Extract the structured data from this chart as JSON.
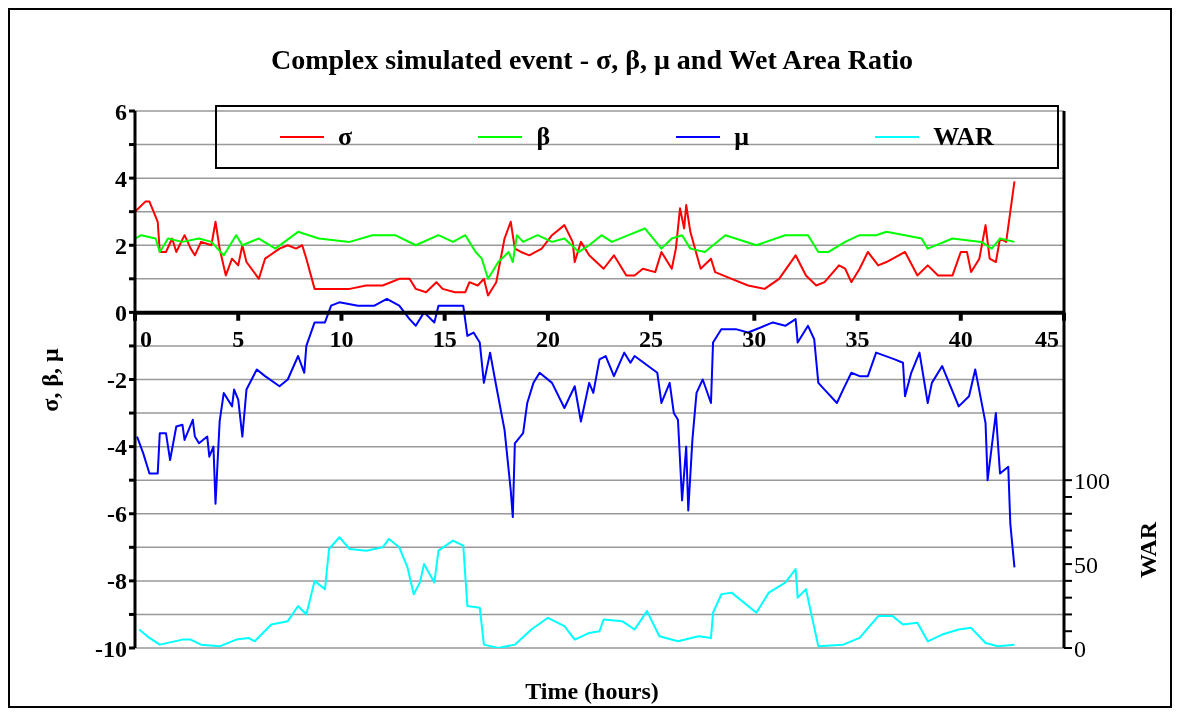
{
  "chart_data": {
    "type": "line",
    "title": "Complex simulated event - σ, β, μ and Wet Area Ratio",
    "xlabel": "Time (hours)",
    "ylabel": "σ, β, μ",
    "y2label": "WAR",
    "xlim": [
      0,
      45
    ],
    "xticks": [
      0,
      5,
      10,
      15,
      20,
      25,
      30,
      35,
      40,
      45
    ],
    "ylim": [
      -10,
      6
    ],
    "yticks": [
      -10,
      {
        "value": -9,
        "label": null
      },
      -8,
      {
        "value": -7,
        "label": null
      },
      -6,
      {
        "value": -5,
        "label": null
      },
      -4,
      {
        "value": -3,
        "label": null
      },
      -2,
      {
        "value": -1,
        "label": null
      },
      0,
      {
        "value": 1,
        "label": null
      },
      2,
      {
        "value": 3,
        "label": null
      },
      4,
      {
        "value": 5,
        "label": null
      },
      6
    ],
    "y2lim": [
      0,
      320
    ],
    "y2ticks": [
      0,
      {
        "value": 10,
        "label": null
      },
      {
        "value": 20,
        "label": null
      },
      {
        "value": 30,
        "label": null
      },
      {
        "value": 40,
        "label": null
      },
      50,
      {
        "value": 60,
        "label": null
      },
      {
        "value": 70,
        "label": null
      },
      {
        "value": 80,
        "label": null
      },
      {
        "value": 90,
        "label": null
      },
      100
    ],
    "grid": "y",
    "legend": "top",
    "marker": "none",
    "line_style": "solid",
    "series": [
      {
        "name": "σ",
        "color": "#ff0000",
        "x": [
          0,
          0.5,
          0.7,
          0.9,
          1.1,
          1.2,
          1.5,
          1.8,
          2.0,
          2.4,
          2.7,
          2.9,
          3.2,
          3.7,
          3.9,
          4.1,
          4.4,
          4.7,
          5.0,
          5.2,
          5.4,
          6.0,
          6.3,
          7.0,
          7.4,
          7.8,
          8.1,
          8.3,
          8.7,
          9.5,
          10.4,
          11.2,
          12.0,
          12.8,
          13.3,
          13.6,
          14.1,
          14.6,
          14.9,
          15.5,
          16.0,
          16.2,
          16.6,
          16.9,
          17.1,
          17.5,
          17.9,
          18.2,
          18.4,
          18.7,
          19.1,
          19.7,
          20.2,
          20.8,
          21.2,
          21.3,
          21.6,
          22.0,
          22.7,
          23.2,
          23.8,
          24.2,
          24.6,
          25.2,
          25.5,
          26.0,
          26.2,
          26.4,
          26.6,
          26.7,
          26.9,
          27.4,
          27.9,
          28.1,
          28.9,
          29.7,
          30.5,
          31.2,
          32.0,
          32.5,
          33.0,
          33.4,
          34.1,
          34.4,
          34.7,
          35.1,
          35.5,
          36.0,
          36.4,
          37.3,
          37.9,
          38.4,
          38.9,
          39.6,
          40.0,
          40.3,
          40.5,
          40.9,
          41.2,
          41.4,
          41.7,
          41.9,
          42.2,
          42.4,
          42.6
        ],
        "values": [
          3.0,
          3.3,
          3.3,
          3.0,
          2.7,
          1.8,
          1.8,
          2.2,
          1.8,
          2.3,
          1.9,
          1.7,
          2.1,
          2.0,
          2.7,
          1.9,
          1.1,
          1.6,
          1.4,
          2.0,
          1.5,
          1.0,
          1.6,
          1.9,
          2.0,
          1.9,
          2.0,
          1.6,
          0.7,
          0.7,
          0.7,
          0.8,
          0.8,
          1.0,
          1.0,
          0.7,
          0.6,
          0.9,
          0.7,
          0.6,
          0.6,
          0.9,
          0.8,
          1.0,
          0.5,
          0.9,
          2.2,
          2.7,
          1.9,
          1.8,
          1.7,
          1.9,
          2.3,
          2.6,
          2.1,
          1.5,
          2.1,
          1.7,
          1.3,
          1.7,
          1.1,
          1.1,
          1.3,
          1.2,
          1.8,
          1.3,
          1.9,
          3.1,
          2.5,
          3.2,
          2.4,
          1.3,
          1.6,
          1.2,
          1.0,
          0.8,
          0.7,
          1.0,
          1.7,
          1.1,
          0.8,
          0.9,
          1.4,
          1.3,
          0.9,
          1.3,
          1.8,
          1.4,
          1.5,
          1.8,
          1.1,
          1.4,
          1.1,
          1.1,
          1.8,
          1.8,
          1.2,
          1.6,
          2.6,
          1.6,
          1.5,
          2.2,
          2.1,
          3.0,
          3.9
        ]
      },
      {
        "name": "β",
        "color": "#00ff00",
        "x": [
          0,
          0.3,
          1.0,
          1.2,
          1.6,
          2.3,
          3.1,
          3.7,
          4.3,
          4.9,
          5.2,
          6.0,
          6.8,
          7.9,
          8.9,
          10.4,
          11.5,
          12.6,
          13.6,
          14.7,
          15.4,
          16.0,
          16.5,
          16.8,
          17.1,
          17.6,
          18.1,
          18.3,
          18.5,
          18.8,
          19.5,
          20.2,
          20.8,
          21.5,
          22.0,
          22.6,
          23.1,
          23.9,
          24.7,
          25.5,
          26.0,
          26.5,
          26.9,
          27.6,
          28.6,
          30.1,
          31.5,
          32.6,
          33.1,
          33.6,
          34.4,
          35.1,
          35.9,
          36.4,
          37.3,
          38.1,
          38.4,
          39.6,
          41.0,
          41.5,
          41.9,
          42.6
        ],
        "values": [
          2.2,
          2.3,
          2.2,
          1.8,
          2.2,
          2.1,
          2.2,
          2.1,
          1.7,
          2.3,
          2.0,
          2.2,
          1.9,
          2.4,
          2.2,
          2.1,
          2.3,
          2.3,
          2.0,
          2.3,
          2.1,
          2.3,
          1.8,
          1.6,
          1.0,
          1.5,
          1.8,
          1.5,
          2.3,
          2.1,
          2.3,
          2.1,
          2.2,
          1.8,
          2.0,
          2.3,
          2.1,
          2.3,
          2.5,
          1.9,
          2.2,
          2.3,
          1.9,
          1.8,
          2.3,
          2.0,
          2.3,
          2.3,
          1.8,
          1.8,
          2.1,
          2.3,
          2.3,
          2.4,
          2.3,
          2.2,
          1.9,
          2.2,
          2.1,
          1.9,
          2.2,
          2.1
        ]
      },
      {
        "name": "μ",
        "color": "#0000ff",
        "x": [
          0.1,
          0.4,
          0.7,
          1.1,
          1.2,
          1.5,
          1.7,
          2.0,
          2.3,
          2.4,
          2.8,
          2.9,
          3.1,
          3.5,
          3.6,
          3.8,
          3.9,
          4.1,
          4.3,
          4.7,
          4.8,
          5.0,
          5.2,
          5.4,
          5.9,
          6.3,
          7.0,
          7.4,
          7.9,
          8.2,
          8.3,
          8.7,
          9.2,
          9.5,
          9.9,
          10.8,
          11.6,
          12.2,
          12.8,
          13.3,
          13.6,
          14.0,
          14.5,
          14.7,
          15.2,
          15.9,
          16.1,
          16.4,
          16.7,
          16.9,
          17.2,
          17.5,
          17.9,
          18.2,
          18.3,
          18.4,
          18.8,
          19.0,
          19.3,
          19.6,
          20.2,
          20.8,
          21.3,
          21.6,
          22.0,
          22.2,
          22.5,
          22.8,
          23.2,
          23.7,
          24.0,
          24.2,
          25.3,
          25.5,
          25.9,
          26.1,
          26.3,
          26.5,
          26.7,
          26.8,
          27.0,
          27.2,
          27.5,
          27.9,
          28.0,
          28.4,
          29.1,
          29.7,
          30.9,
          31.5,
          32.0,
          32.1,
          32.6,
          32.9,
          33.1,
          33.4,
          34.0,
          34.3,
          34.7,
          35.1,
          35.5,
          35.9,
          36.8,
          37.2,
          37.3,
          37.6,
          38.0,
          38.4,
          38.6,
          39.1,
          39.9,
          40.4,
          40.7,
          41.2,
          41.3,
          41.7,
          41.9,
          42.3,
          42.4,
          42.6
        ],
        "values": [
          -3.7,
          -4.2,
          -4.8,
          -4.8,
          -3.6,
          -3.6,
          -4.4,
          -3.4,
          -3.35,
          -3.8,
          -3.2,
          -3.7,
          -3.9,
          -3.7,
          -4.3,
          -4.0,
          -5.7,
          -3.25,
          -2.4,
          -2.8,
          -2.3,
          -2.6,
          -3.7,
          -2.3,
          -1.7,
          -1.9,
          -2.2,
          -2.0,
          -1.3,
          -1.8,
          -1.0,
          -0.3,
          -0.3,
          0.2,
          0.3,
          0.2,
          0.2,
          0.4,
          0.2,
          -0.2,
          -0.4,
          0.0,
          -0.3,
          0.2,
          0.2,
          0.2,
          -0.7,
          -0.6,
          -0.9,
          -2.1,
          -1.2,
          -2.2,
          -3.5,
          -5.3,
          -6.1,
          -3.9,
          -3.6,
          -2.7,
          -2.1,
          -1.8,
          -2.1,
          -2.85,
          -2.2,
          -3.25,
          -2.1,
          -2.4,
          -1.4,
          -1.3,
          -1.9,
          -1.2,
          -1.5,
          -1.3,
          -1.8,
          -2.7,
          -2.1,
          -3.0,
          -3.2,
          -5.6,
          -4.0,
          -5.9,
          -3.8,
          -2.4,
          -2.0,
          -2.7,
          -0.9,
          -0.5,
          -0.5,
          -0.6,
          -0.3,
          -0.4,
          -0.2,
          -0.9,
          -0.4,
          -0.8,
          -2.1,
          -2.3,
          -2.7,
          -2.3,
          -1.8,
          -1.9,
          -1.9,
          -1.2,
          -1.4,
          -1.5,
          -2.5,
          -1.8,
          -1.2,
          -2.7,
          -2.1,
          -1.6,
          -2.8,
          -2.5,
          -1.7,
          -3.3,
          -5.0,
          -3.0,
          -4.8,
          -4.6,
          -6.3,
          -7.6
        ]
      },
      {
        "name": "WAR",
        "color": "#00ffff",
        "axis": "y2",
        "x": [
          0.2,
          0.7,
          1.2,
          2.3,
          2.7,
          3.2,
          4.1,
          4.9,
          5.5,
          5.8,
          6.6,
          7.4,
          7.9,
          8.3,
          8.7,
          9.2,
          9.4,
          9.9,
          10.4,
          11.2,
          12.0,
          12.3,
          12.8,
          13.2,
          13.5,
          13.8,
          14.0,
          14.5,
          14.7,
          15.4,
          15.9,
          16.1,
          16.7,
          16.9,
          17.6,
          18.4,
          19.2,
          20.0,
          20.8,
          21.3,
          22.0,
          22.5,
          22.7,
          23.6,
          24.2,
          24.8,
          25.4,
          26.3,
          27.3,
          27.9,
          28.0,
          28.4,
          28.9,
          30.1,
          30.7,
          31.5,
          32.0,
          32.1,
          32.5,
          33.1,
          34.3,
          35.1,
          36.0,
          36.7,
          37.2,
          37.9,
          38.4,
          39.1,
          39.9,
          40.5,
          41.2,
          41.8,
          42.6
        ],
        "values": [
          11,
          6,
          2,
          5,
          5,
          2,
          1,
          5,
          6,
          4,
          14,
          16,
          25,
          20,
          40,
          35,
          59,
          66,
          59,
          58,
          60,
          65,
          60,
          48,
          32,
          39,
          50,
          39,
          58,
          64,
          61,
          25,
          24,
          2,
          0,
          2,
          11,
          18,
          13,
          5,
          9,
          10,
          17,
          16,
          11,
          22,
          7,
          4,
          7,
          6,
          21,
          32,
          33,
          21,
          33,
          39,
          47,
          30,
          35,
          1,
          2,
          6,
          19,
          19,
          14,
          15,
          4,
          8,
          11,
          12,
          3,
          1,
          2
        ]
      }
    ]
  }
}
